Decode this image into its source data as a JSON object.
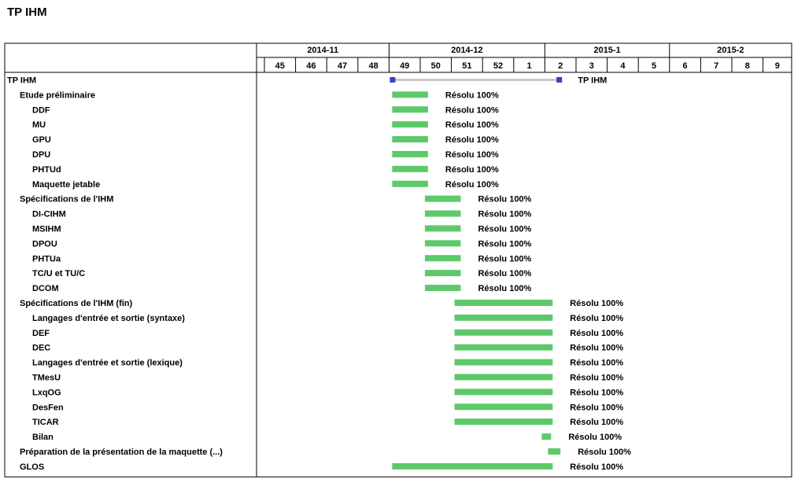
{
  "page": {
    "title": "TP IHM"
  },
  "colors": {
    "bar": "#5dc96a",
    "summary_line": "#c8c8c8",
    "summary_marker": "#3a3fbf",
    "grid": "#000000"
  },
  "chart_data": {
    "type": "gantt",
    "title": "TP IHM",
    "month_headers": [
      {
        "label": "2014-11",
        "weeks": [
          "45",
          "46",
          "47",
          "48"
        ]
      },
      {
        "label": "2014-12",
        "weeks": [
          "49",
          "50",
          "51",
          "52",
          "1"
        ]
      },
      {
        "label": "2015-1",
        "weeks": [
          "2",
          "3",
          "4",
          "5"
        ]
      },
      {
        "label": "2015-2",
        "weeks": [
          "6",
          "7",
          "8",
          "9"
        ]
      }
    ],
    "week_labels": [
      "45",
      "46",
      "47",
      "48",
      "49",
      "50",
      "51",
      "52",
      "1",
      "2",
      "3",
      "4",
      "5",
      "6",
      "7",
      "8",
      "9"
    ],
    "tasks": [
      {
        "name": "TP IHM",
        "level": 0,
        "type": "summary",
        "start_week": 4.1,
        "end_week": 9.45,
        "label": "TP IHM"
      },
      {
        "name": "Etude préliminaire",
        "level": 1,
        "type": "task",
        "start_week": 4.1,
        "end_week": 5.25,
        "label": "Résolu 100%"
      },
      {
        "name": "DDF",
        "level": 2,
        "type": "task",
        "start_week": 4.1,
        "end_week": 5.25,
        "label": "Résolu 100%"
      },
      {
        "name": "MU",
        "level": 2,
        "type": "task",
        "start_week": 4.1,
        "end_week": 5.25,
        "label": "Résolu 100%"
      },
      {
        "name": "GPU",
        "level": 2,
        "type": "task",
        "start_week": 4.1,
        "end_week": 5.25,
        "label": "Résolu 100%"
      },
      {
        "name": "DPU",
        "level": 2,
        "type": "task",
        "start_week": 4.1,
        "end_week": 5.25,
        "label": "Résolu 100%"
      },
      {
        "name": "PHTUd",
        "level": 2,
        "type": "task",
        "start_week": 4.1,
        "end_week": 5.25,
        "label": "Résolu 100%"
      },
      {
        "name": "Maquette jetable",
        "level": 2,
        "type": "task",
        "start_week": 4.1,
        "end_week": 5.25,
        "label": "Résolu 100%"
      },
      {
        "name": "Spécifications de l'IHM",
        "level": 1,
        "type": "task",
        "start_week": 5.15,
        "end_week": 6.3,
        "label": "Résolu 100%"
      },
      {
        "name": "DI-CIHM",
        "level": 2,
        "type": "task",
        "start_week": 5.15,
        "end_week": 6.3,
        "label": "Résolu 100%"
      },
      {
        "name": "MSIHM",
        "level": 2,
        "type": "task",
        "start_week": 5.15,
        "end_week": 6.3,
        "label": "Résolu 100%"
      },
      {
        "name": "DPOU",
        "level": 2,
        "type": "task",
        "start_week": 5.15,
        "end_week": 6.3,
        "label": "Résolu 100%"
      },
      {
        "name": "PHTUa",
        "level": 2,
        "type": "task",
        "start_week": 5.15,
        "end_week": 6.3,
        "label": "Résolu 100%"
      },
      {
        "name": "TC/U et TU/C",
        "level": 2,
        "type": "task",
        "start_week": 5.15,
        "end_week": 6.3,
        "label": "Résolu 100%"
      },
      {
        "name": "DCOM",
        "level": 2,
        "type": "task",
        "start_week": 5.15,
        "end_week": 6.3,
        "label": "Résolu 100%"
      },
      {
        "name": "Spécifications de l'IHM (fin)",
        "level": 1,
        "type": "task",
        "start_week": 6.1,
        "end_week": 9.25,
        "label": "Résolu 100%"
      },
      {
        "name": "Langages d'entrée et sortie (syntaxe)",
        "level": 2,
        "type": "task",
        "start_week": 6.1,
        "end_week": 9.25,
        "label": "Résolu 100%"
      },
      {
        "name": "DEF",
        "level": 2,
        "type": "task",
        "start_week": 6.1,
        "end_week": 9.25,
        "label": "Résolu 100%"
      },
      {
        "name": "DEC",
        "level": 2,
        "type": "task",
        "start_week": 6.1,
        "end_week": 9.25,
        "label": "Résolu 100%"
      },
      {
        "name": "Langages d'entrée et sortie (lexique)",
        "level": 2,
        "type": "task",
        "start_week": 6.1,
        "end_week": 9.25,
        "label": "Résolu 100%"
      },
      {
        "name": "TMesU",
        "level": 2,
        "type": "task",
        "start_week": 6.1,
        "end_week": 9.25,
        "label": "Résolu 100%"
      },
      {
        "name": "LxqOG",
        "level": 2,
        "type": "task",
        "start_week": 6.1,
        "end_week": 9.25,
        "label": "Résolu 100%"
      },
      {
        "name": "DesFen",
        "level": 2,
        "type": "task",
        "start_week": 6.1,
        "end_week": 9.25,
        "label": "Résolu 100%"
      },
      {
        "name": "TICAR",
        "level": 2,
        "type": "task",
        "start_week": 6.1,
        "end_week": 9.25,
        "label": "Résolu 100%"
      },
      {
        "name": "Bilan",
        "level": 2,
        "type": "task",
        "start_week": 8.9,
        "end_week": 9.2,
        "label": "Résolu 100%"
      },
      {
        "name": "Préparation de la présentation de la maquette  (...)",
        "level": 1,
        "type": "task",
        "start_week": 9.1,
        "end_week": 9.5,
        "label": "Résolu 100%"
      },
      {
        "name": "GLOS",
        "level": 1,
        "type": "task",
        "start_week": 4.1,
        "end_week": 9.25,
        "label": "Résolu 100%"
      }
    ]
  }
}
